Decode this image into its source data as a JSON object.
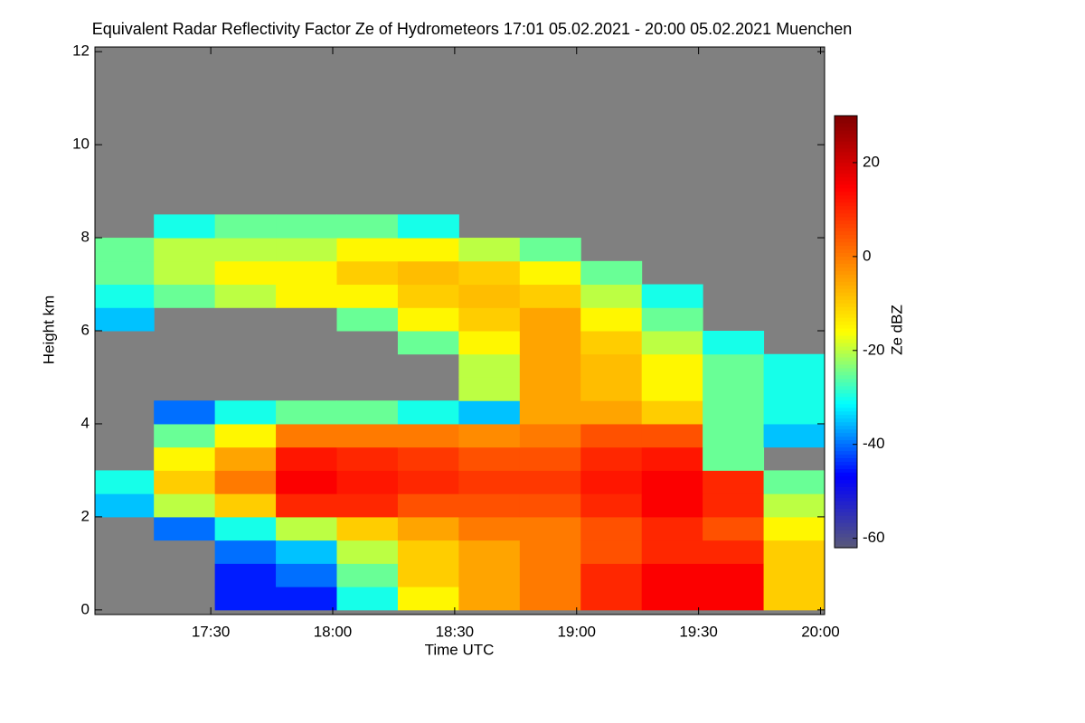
{
  "chart_data": {
    "type": "heatmap",
    "title": "Equivalent Radar Reflectivity Factor Ze of Hydrometeors   17:01 05.02.2021 - 20:00 05.02.2021 Muenchen",
    "x_label": "Time UTC",
    "y_label": "Height km",
    "colorbar_label": "Ze dBZ",
    "xlim": [
      1021.5,
      1201
    ],
    "xticks": [
      {
        "value": 1050,
        "label": "17:30"
      },
      {
        "value": 1080,
        "label": "18:00"
      },
      {
        "value": 1110,
        "label": "18:30"
      },
      {
        "value": 1140,
        "label": "19:00"
      },
      {
        "value": 1170,
        "label": "19:30"
      },
      {
        "value": 1200,
        "label": "20:00"
      }
    ],
    "ylim": [
      -0.1,
      12.1
    ],
    "yticks": [
      0,
      2,
      4,
      6,
      8,
      10,
      12
    ],
    "clim": [
      -62,
      30
    ],
    "cticks": [
      -60,
      -40,
      -20,
      0,
      20
    ],
    "colormap": [
      "#5a5a78",
      "#0000ff",
      "#00ffff",
      "#ffff00",
      "#ff8000",
      "#ff0000",
      "#800000"
    ],
    "background": "#808080",
    "x_edges": [
      1021.5,
      1036,
      1051,
      1066,
      1081,
      1096,
      1111,
      1126,
      1141,
      1156,
      1171,
      1186,
      1201
    ],
    "y_edges": [
      0,
      0.5,
      1,
      1.5,
      2,
      2.5,
      3,
      3.5,
      4,
      4.5,
      5,
      5.5,
      6,
      6.5,
      7,
      7.5,
      8,
      8.5
    ],
    "z": [
      [
        null,
        null,
        -45,
        -45,
        -30,
        -15,
        -5,
        0,
        10,
        15,
        15,
        -10
      ],
      [
        null,
        null,
        -45,
        -40,
        -25,
        -10,
        -5,
        0,
        10,
        15,
        15,
        -10
      ],
      [
        null,
        null,
        -40,
        -35,
        -20,
        -10,
        -5,
        0,
        5,
        10,
        10,
        -10
      ],
      [
        null,
        -40,
        -30,
        -20,
        -10,
        -5,
        0,
        0,
        5,
        10,
        5,
        -15
      ],
      [
        -35,
        -20,
        -10,
        10,
        10,
        5,
        5,
        5,
        10,
        15,
        10,
        -20
      ],
      [
        -30,
        -10,
        0,
        15,
        12,
        10,
        8,
        8,
        12,
        15,
        10,
        -25
      ],
      [
        null,
        -15,
        -5,
        12,
        10,
        8,
        5,
        5,
        10,
        12,
        -25,
        null
      ],
      [
        null,
        -25,
        -15,
        0,
        0,
        0,
        -2,
        0,
        5,
        5,
        -25,
        -35
      ],
      [
        null,
        -40,
        -30,
        -25,
        -25,
        -30,
        -35,
        -5,
        -5,
        -10,
        -25,
        -30
      ],
      [
        null,
        null,
        null,
        null,
        null,
        null,
        -20,
        -5,
        -8,
        -15,
        -25,
        -30
      ],
      [
        null,
        null,
        null,
        null,
        null,
        null,
        -20,
        -5,
        -8,
        -15,
        -25,
        -30
      ],
      [
        null,
        null,
        null,
        null,
        null,
        -25,
        -15,
        -5,
        -10,
        -20,
        -30,
        null
      ],
      [
        -35,
        null,
        null,
        null,
        -25,
        -15,
        -10,
        -5,
        -15,
        -25,
        null,
        null
      ],
      [
        -30,
        -25,
        -20,
        -15,
        -15,
        -10,
        -8,
        -10,
        -20,
        -30,
        null,
        null
      ],
      [
        -25,
        -20,
        -15,
        -15,
        -10,
        -8,
        -10,
        -15,
        -25,
        null,
        null,
        null
      ],
      [
        -25,
        -20,
        -20,
        -20,
        -15,
        -15,
        -20,
        -25,
        null,
        null,
        null,
        null
      ],
      [
        null,
        -30,
        -25,
        -25,
        -25,
        -30,
        null,
        null,
        null,
        null,
        null,
        null
      ]
    ]
  }
}
